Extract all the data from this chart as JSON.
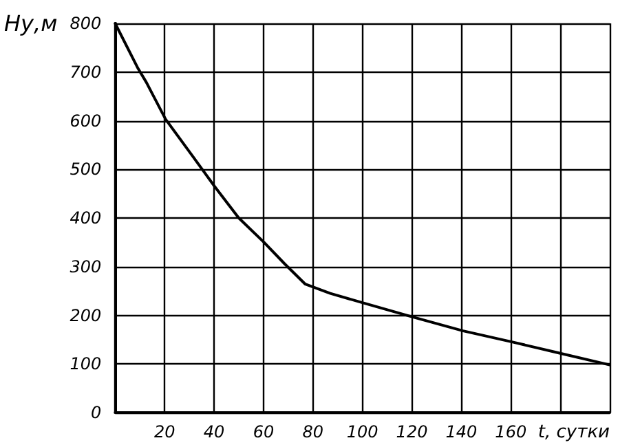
{
  "chart_data": {
    "type": "line",
    "xlabel": "t, сутки",
    "ylabel": "Hу,м",
    "x": [
      0,
      9.3,
      12.6,
      20.4,
      31.5,
      40.2,
      50,
      60.2,
      68.5,
      76.9,
      87,
      100,
      120,
      140.7,
      160.7,
      180,
      200
    ],
    "series": [
      {
        "color": "#000000",
        "values": [
          800,
          707,
          679,
          603,
          526,
          465,
          400,
          350,
          306,
          264,
          245,
          226,
          197,
          168,
          145,
          122,
          98
        ]
      }
    ],
    "xlim": [
      0,
      200
    ],
    "xticks": [
      {
        "value": 0,
        "label": null
      },
      20,
      40,
      60,
      80,
      100,
      120,
      140,
      160,
      {
        "value": 180,
        "label": null
      },
      {
        "value": 200,
        "label": null
      }
    ],
    "ylim": [
      0,
      800
    ],
    "yticks": [
      0,
      100,
      200,
      300,
      400,
      500,
      600,
      700,
      800
    ],
    "grid": true,
    "marker": "none",
    "line_style": "solid"
  }
}
